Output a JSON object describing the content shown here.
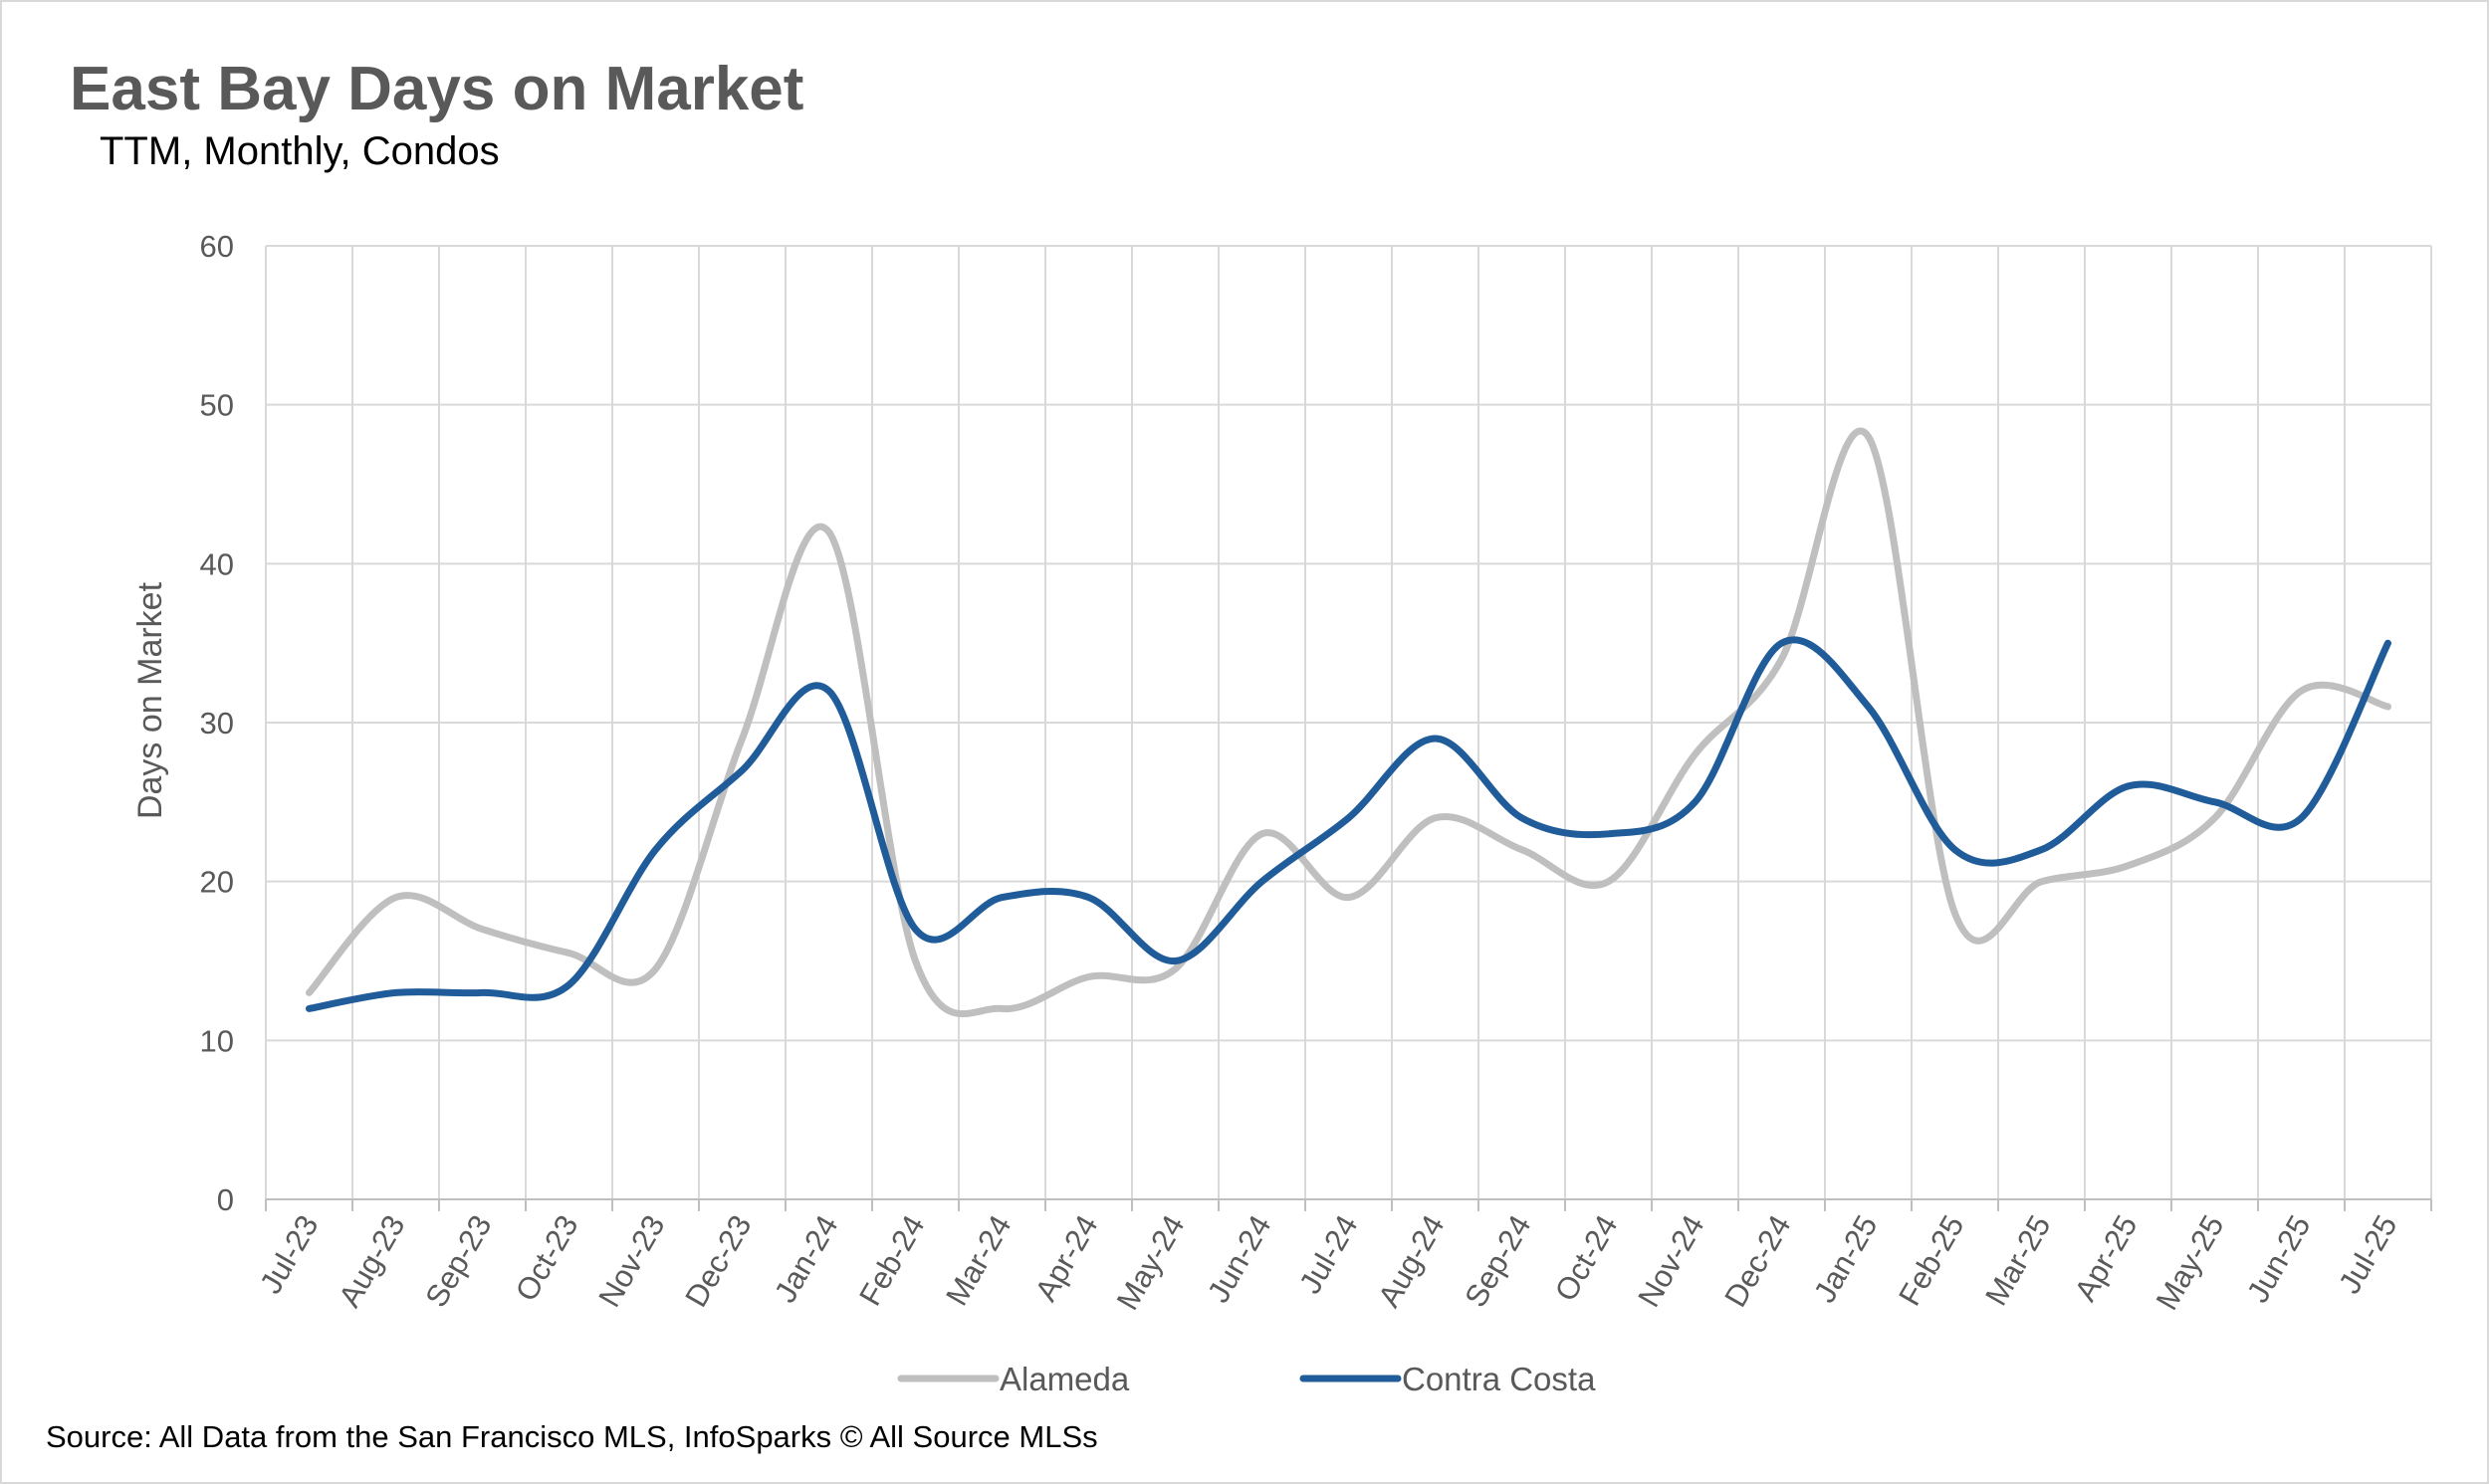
{
  "chart_data": {
    "type": "line",
    "title": "East Bay Days on Market",
    "subtitle": "TTM, Monthly, Condos",
    "xlabel": "",
    "ylabel": "Days on Market",
    "ylim": [
      0,
      60
    ],
    "yticks": [
      0,
      10,
      20,
      30,
      40,
      50,
      60
    ],
    "grid": true,
    "legend": "bottom",
    "categories": [
      "Jul-23",
      "Aug-23",
      "Sep-23",
      "Oct-23",
      "Nov-23",
      "Dec-23",
      "Jan-24",
      "Feb-24",
      "Mar-24",
      "Apr-24",
      "May-24",
      "Jun-24",
      "Jul-24",
      "Aug-24",
      "Sep-24",
      "Oct-24",
      "Nov-24",
      "Dec-24",
      "Jan-25",
      "Feb-25",
      "Mar-25",
      "Apr-25",
      "May-25",
      "Jun-25",
      "Jul-25"
    ],
    "series": [
      {
        "name": "Alameda",
        "color": "#bfbfbf",
        "values": [
          13,
          19,
          17,
          15.5,
          14.5,
          29,
          42,
          15,
          12,
          14,
          14.5,
          23,
          19,
          24,
          22,
          20,
          28,
          34,
          48,
          18,
          20,
          21,
          24,
          32,
          31
        ]
      },
      {
        "name": "Contra Costa",
        "color": "#1f5c99",
        "values": [
          12,
          13,
          13,
          13.5,
          22,
          27,
          32,
          17,
          19,
          19,
          15,
          20,
          24,
          29,
          24,
          23,
          25,
          35,
          31,
          22,
          22,
          26,
          25,
          24,
          35
        ]
      }
    ]
  },
  "footer": {
    "source": "Source: All Data from the San Francisco MLS, InfoSparks © All Source MLSs"
  }
}
